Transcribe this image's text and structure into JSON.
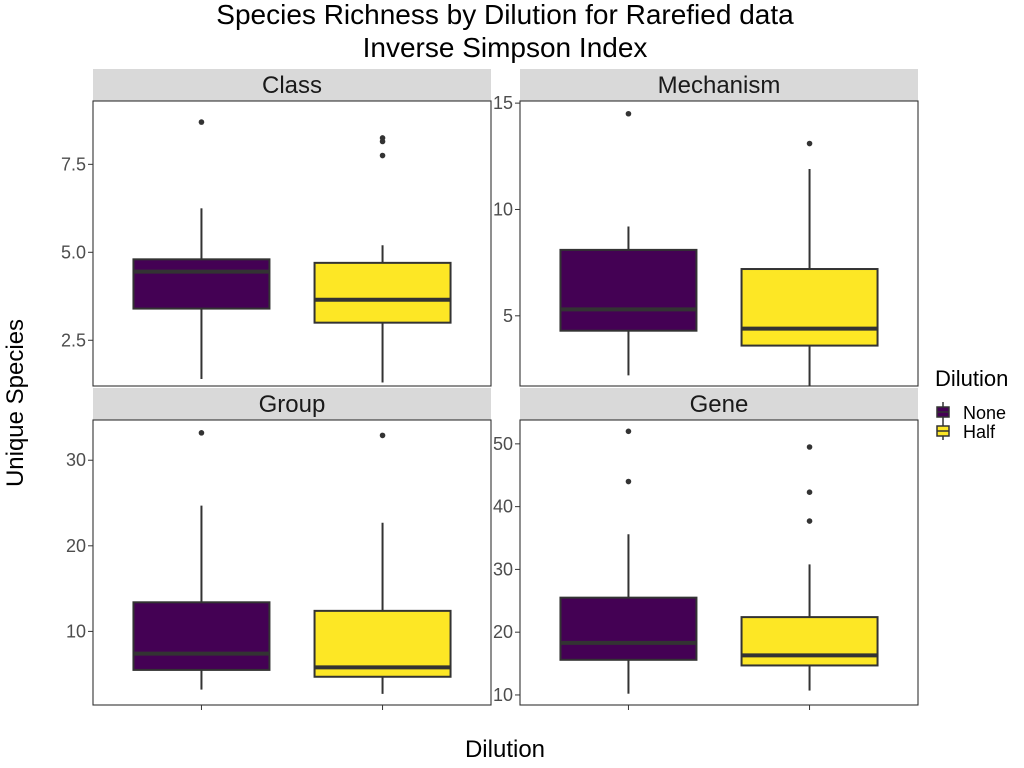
{
  "chart_data": {
    "type": "boxplot",
    "title": [
      "Species Richness by Dilution for Rarefied data",
      "Inverse Simpson Index"
    ],
    "xlabel": "Dilution",
    "ylabel": "Unique Species",
    "legend": {
      "title": "Dilution",
      "placement": "right",
      "entries": [
        {
          "label": "None",
          "color": "#440154"
        },
        {
          "label": "Half",
          "color": "#FDE725"
        }
      ]
    },
    "grid": false,
    "facets": [
      {
        "name": "Class",
        "ylim": [
          1.2,
          9.3
        ],
        "yticks": [
          2.5,
          5.0,
          7.5
        ],
        "ytick_labels": [
          "2.5",
          "5.0",
          "7.5"
        ],
        "boxes": [
          {
            "group": "None",
            "whisker_low": 1.4,
            "q1": 3.4,
            "median": 4.45,
            "q3": 4.8,
            "whisker_high": 6.25,
            "outliers": [
              8.7
            ]
          },
          {
            "group": "Half",
            "whisker_low": 1.3,
            "q1": 3.0,
            "median": 3.65,
            "q3": 4.7,
            "whisker_high": 5.2,
            "outliers": [
              7.75,
              8.15,
              8.25
            ]
          }
        ]
      },
      {
        "name": "Mechanism",
        "ylim": [
          1.7,
          15.1
        ],
        "yticks": [
          5,
          10,
          15
        ],
        "ytick_labels": [
          "5",
          "10",
          "15"
        ],
        "boxes": [
          {
            "group": "None",
            "whisker_low": 2.2,
            "q1": 4.3,
            "median": 5.3,
            "q3": 8.1,
            "whisker_high": 9.2,
            "outliers": [
              14.5
            ]
          },
          {
            "group": "Half",
            "whisker_low": 1.7,
            "q1": 3.6,
            "median": 4.4,
            "q3": 7.2,
            "whisker_high": 11.9,
            "outliers": [
              13.1
            ]
          }
        ]
      },
      {
        "name": "Group",
        "ylim": [
          1.4,
          34.7
        ],
        "yticks": [
          10,
          20,
          30
        ],
        "ytick_labels": [
          "10",
          "20",
          "30"
        ],
        "boxes": [
          {
            "group": "None",
            "whisker_low": 3.2,
            "q1": 5.5,
            "median": 7.4,
            "q3": 13.4,
            "whisker_high": 24.7,
            "outliers": [
              33.2
            ]
          },
          {
            "group": "Half",
            "whisker_low": 2.7,
            "q1": 4.7,
            "median": 5.8,
            "q3": 12.4,
            "whisker_high": 22.7,
            "outliers": [
              32.9
            ]
          }
        ]
      },
      {
        "name": "Gene",
        "ylim": [
          8.4,
          53.8
        ],
        "yticks": [
          10,
          20,
          30,
          40,
          50
        ],
        "ytick_labels": [
          "10",
          "20",
          "30",
          "40",
          "50"
        ],
        "boxes": [
          {
            "group": "None",
            "whisker_low": 10.2,
            "q1": 15.6,
            "median": 18.3,
            "q3": 25.5,
            "whisker_high": 35.6,
            "outliers": [
              44.0,
              52.0
            ]
          },
          {
            "group": "Half",
            "whisker_low": 10.7,
            "q1": 14.7,
            "median": 16.3,
            "q3": 22.4,
            "whisker_high": 30.8,
            "outliers": [
              37.7,
              42.3,
              49.5
            ]
          }
        ]
      }
    ]
  }
}
